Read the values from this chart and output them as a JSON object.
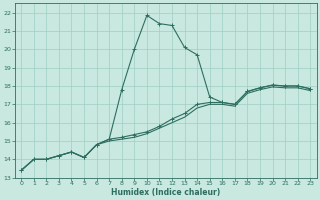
{
  "title": "",
  "xlabel": "Humidex (Indice chaleur)",
  "ylabel": "",
  "xlim": [
    -0.5,
    23.5
  ],
  "ylim": [
    13,
    22.5
  ],
  "xticks": [
    0,
    1,
    2,
    3,
    4,
    5,
    6,
    7,
    8,
    9,
    10,
    11,
    12,
    13,
    14,
    15,
    16,
    17,
    18,
    19,
    20,
    21,
    22,
    23
  ],
  "yticks": [
    13,
    14,
    15,
    16,
    17,
    18,
    19,
    20,
    21,
    22
  ],
  "background_color": "#c8e8e0",
  "grid_color": "#9ecfc4",
  "line_color": "#2e6e60",
  "series1_x": [
    0,
    1,
    2,
    3,
    4,
    5,
    6,
    7,
    8,
    9,
    10,
    11,
    12,
    13,
    14,
    15,
    16,
    17,
    18,
    19,
    20,
    21,
    22,
    23
  ],
  "series1_y": [
    13.4,
    14.0,
    14.0,
    14.2,
    14.4,
    14.1,
    14.8,
    15.1,
    17.8,
    20.0,
    21.85,
    21.4,
    21.3,
    20.1,
    19.7,
    17.4,
    17.1,
    17.0,
    17.7,
    17.9,
    18.05,
    18.0,
    18.0,
    17.85
  ],
  "series2_x": [
    0,
    1,
    2,
    3,
    4,
    5,
    6,
    7,
    8,
    9,
    10,
    11,
    12,
    13,
    14,
    15,
    16,
    17,
    18,
    19,
    20,
    21,
    22,
    23
  ],
  "series2_y": [
    13.4,
    14.0,
    14.0,
    14.2,
    14.4,
    14.1,
    14.8,
    15.1,
    15.2,
    15.35,
    15.5,
    15.8,
    16.2,
    16.5,
    17.0,
    17.1,
    17.1,
    17.0,
    17.7,
    17.9,
    18.05,
    18.0,
    18.0,
    17.85
  ],
  "series3_x": [
    0,
    1,
    2,
    3,
    4,
    5,
    6,
    7,
    8,
    9,
    10,
    11,
    12,
    13,
    14,
    15,
    16,
    17,
    18,
    19,
    20,
    21,
    22,
    23
  ],
  "series3_y": [
    13.4,
    14.0,
    14.0,
    14.2,
    14.4,
    14.1,
    14.8,
    15.0,
    15.1,
    15.2,
    15.4,
    15.7,
    16.0,
    16.3,
    16.8,
    17.0,
    17.0,
    16.9,
    17.6,
    17.8,
    17.95,
    17.9,
    17.9,
    17.75
  ],
  "line_width": 0.8,
  "marker_size": 2.5
}
